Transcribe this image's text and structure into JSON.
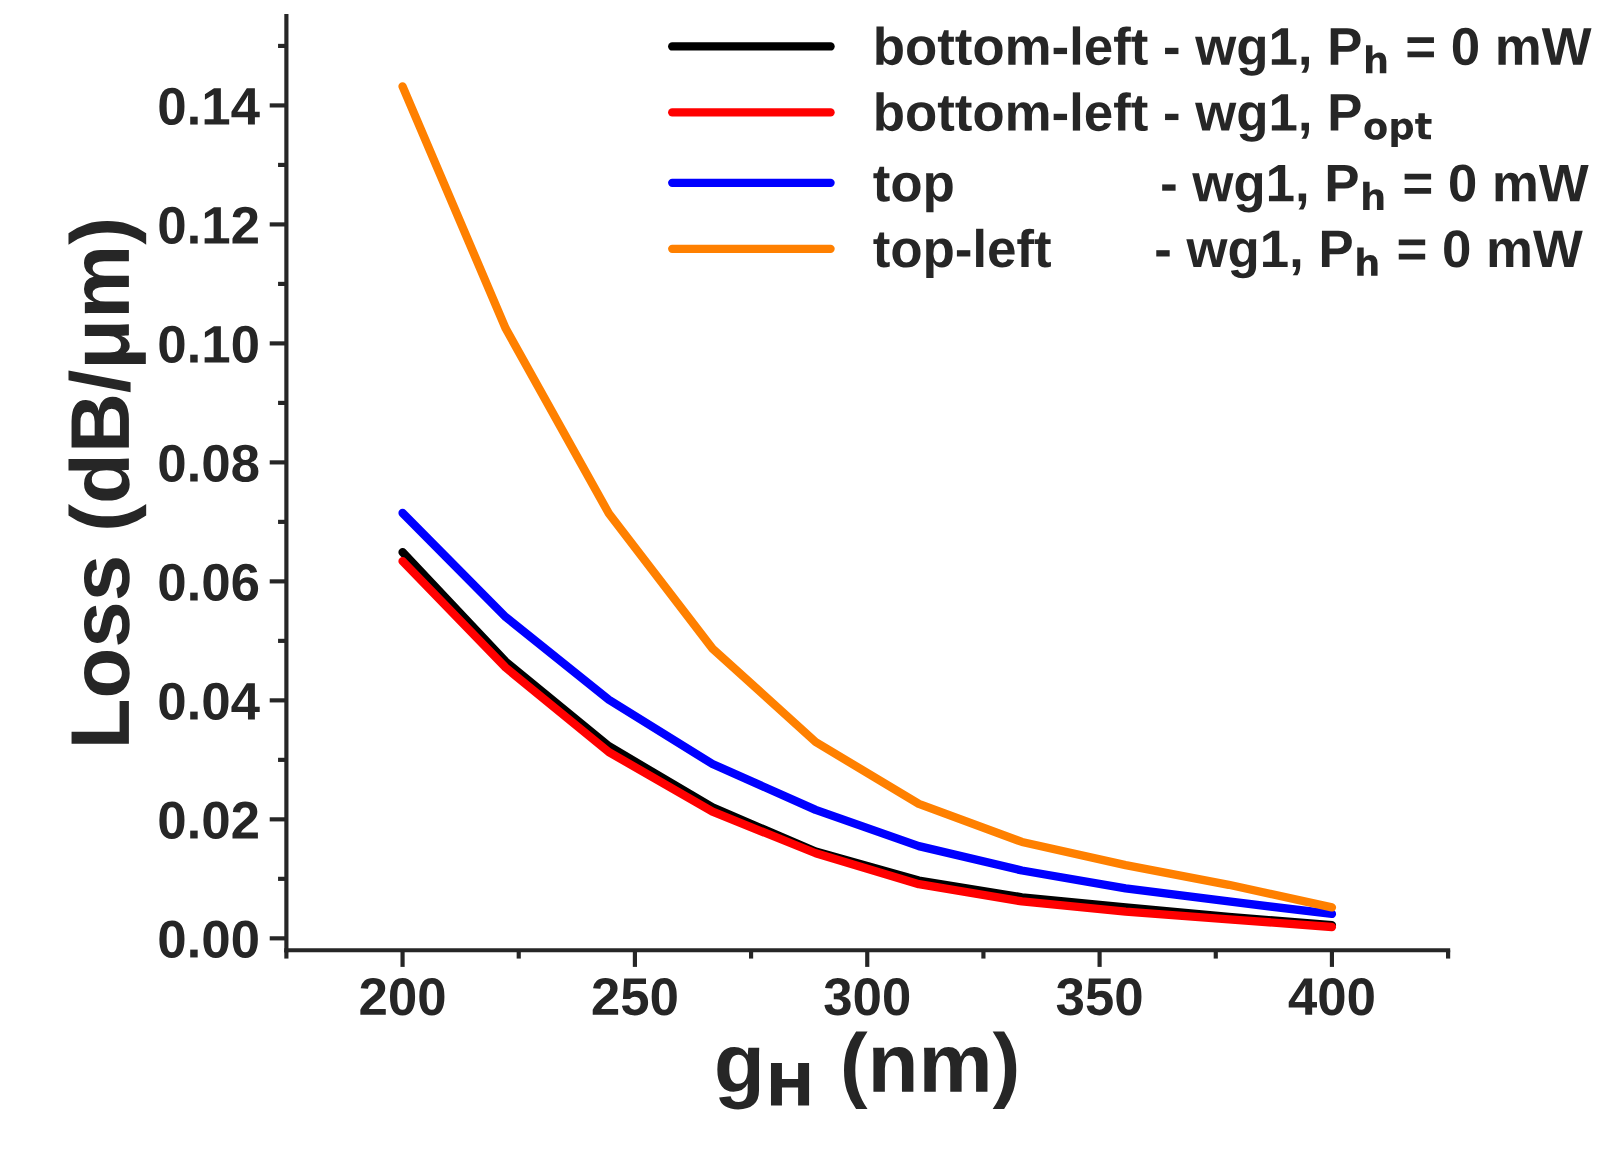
{
  "chart_data": {
    "type": "line",
    "xlabel": "g$_{H}$ (nm)",
    "ylabel": "Loss (dB/μm)",
    "x": [
      200,
      222.2,
      244.4,
      266.7,
      288.9,
      311.1,
      333.3,
      355.6,
      377.8,
      400
    ],
    "series": [
      {
        "name": "bottom-left - wg1, P$_{h}$ = 0 mW",
        "color": "#000000",
        "values": [
          0.0649,
          0.0465,
          0.0323,
          0.022,
          0.0146,
          0.0097,
          0.0069,
          0.0052,
          0.0036,
          0.0022
        ]
      },
      {
        "name": "bottom-left - wg1, P$_{opt}$",
        "color": "#ff0000",
        "values": [
          0.0634,
          0.0455,
          0.0313,
          0.0213,
          0.0143,
          0.0091,
          0.0062,
          0.0045,
          0.0032,
          0.0019
        ]
      },
      {
        "name": "top              - wg1, P$_{h}$ = 0 mW",
        "color": "#0000ff",
        "values": [
          0.0715,
          0.054,
          0.0401,
          0.0293,
          0.0216,
          0.0155,
          0.0114,
          0.0084,
          0.0062,
          0.0041
        ]
      },
      {
        "name": "top-left       - wg1, P$_{h}$ = 0 mW",
        "color": "#ff8000",
        "values": [
          0.1432,
          0.1025,
          0.0714,
          0.0487,
          0.033,
          0.0226,
          0.0162,
          0.0123,
          0.009,
          0.0052
        ]
      }
    ],
    "xlim": [
      175,
      425
    ],
    "xticks": [
      200,
      250,
      300,
      350,
      400
    ],
    "ylim": [
      -0.002,
      0.155
    ],
    "yticks": [
      {
        "value": 0,
        "label": "0.00"
      },
      {
        "value": 0.02,
        "label": "0.02"
      },
      {
        "value": 0.04,
        "label": "0.04"
      },
      {
        "value": 0.06,
        "label": "0.06"
      },
      {
        "value": 0.08,
        "label": "0.08"
      },
      {
        "value": 0.1,
        "label": "0.10"
      },
      {
        "value": 0.12,
        "label": "0.12"
      },
      {
        "value": 0.14,
        "label": "0.14"
      }
    ],
    "grid": false,
    "legend": "top right",
    "marker": "none",
    "line_style": "solid"
  }
}
